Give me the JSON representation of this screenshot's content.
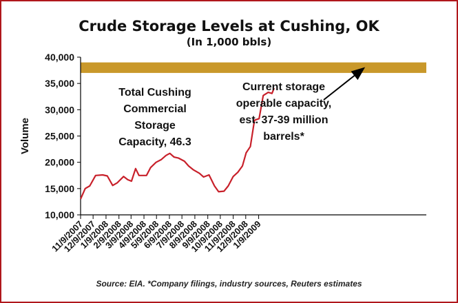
{
  "chart_data": {
    "type": "line",
    "title": "Crude Storage Levels at Cushing, OK",
    "subtitle": "(In 1,000 bbls)",
    "ylabel": "Volume",
    "xlabel": "",
    "ylim": [
      10000,
      40000
    ],
    "yticks": [
      10000,
      15000,
      20000,
      25000,
      30000,
      35000,
      40000
    ],
    "ytick_labels": [
      "10,000",
      "15,000",
      "20,000",
      "25,000",
      "30,000",
      "35,000",
      "40,000"
    ],
    "xlim": [
      "2007-11-09",
      "2010-02-15"
    ],
    "xticks": [
      "2007-11-09",
      "2007-12-09",
      "2008-01-09",
      "2008-02-09",
      "2008-03-09",
      "2008-04-09",
      "2008-05-09",
      "2008-06-09",
      "2008-07-09",
      "2008-08-09",
      "2008-09-09",
      "2008-10-09",
      "2008-11-09",
      "2008-12-09",
      "2009-01-09"
    ],
    "xtick_labels": [
      "11/9/2007",
      "12/9/2007",
      "1/9/2008",
      "2/9/2008",
      "3/9/2008",
      "4/9/2008",
      "5/9/2008",
      "6/9/2008",
      "7/9/2008",
      "8/9/2008",
      "9/9/2008",
      "10/9/2008",
      "11/9/2008",
      "12/9/2008",
      "1/9/2009"
    ],
    "grid": false,
    "series": [
      {
        "color": "#c8202a",
        "x": [
          "2007-11-09",
          "2007-11-20",
          "2007-12-01",
          "2007-12-15",
          "2008-01-01",
          "2008-01-12",
          "2008-01-25",
          "2008-02-05",
          "2008-02-20",
          "2008-03-01",
          "2008-03-10",
          "2008-03-20",
          "2008-03-28",
          "2008-04-05",
          "2008-04-15",
          "2008-04-25",
          "2008-05-08",
          "2008-05-20",
          "2008-06-01",
          "2008-06-10",
          "2008-06-20",
          "2008-07-01",
          "2008-07-15",
          "2008-07-25",
          "2008-08-05",
          "2008-08-20",
          "2008-08-30",
          "2008-09-12",
          "2008-09-25",
          "2008-10-05",
          "2008-10-18",
          "2008-10-28",
          "2008-11-09",
          "2008-11-20",
          "2008-12-01",
          "2008-12-10",
          "2008-12-20",
          "2008-12-30",
          "2009-01-10",
          "2009-01-20",
          "2009-02-01",
          "2009-02-10",
          "2009-02-15"
        ],
        "y": [
          13000,
          15000,
          15500,
          17500,
          17600,
          17400,
          15600,
          16100,
          17300,
          16700,
          16400,
          18800,
          17500,
          17500,
          17500,
          19000,
          20000,
          20500,
          21300,
          21700,
          21000,
          20800,
          20200,
          19300,
          18600,
          17900,
          17200,
          17600,
          15500,
          14400,
          14500,
          15500,
          17300,
          18100,
          19300,
          21800,
          23000,
          28000,
          28300,
          32700,
          33300,
          33100,
          34100
        ]
      }
    ],
    "shaded_band": {
      "y_range": [
        37000,
        39000
      ],
      "color": "#c9982a"
    }
  },
  "annotations": {
    "left_lines": [
      "Total Cushing",
      "Commercial",
      "Storage",
      "Capacity, 46.3"
    ],
    "right_lines": [
      "Current storage",
      "operable capacity,",
      "est. 37-39 million",
      "barrels*"
    ]
  },
  "source": "Source: EIA. *Company filings, industry sources, Reuters estimates"
}
